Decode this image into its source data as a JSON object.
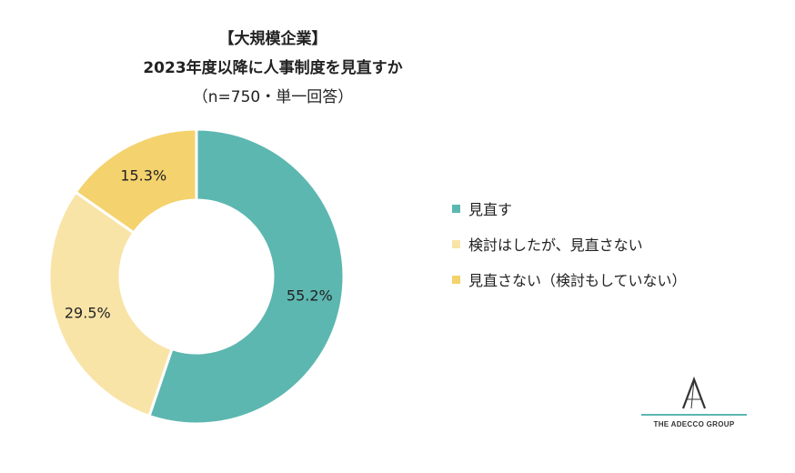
{
  "title": {
    "line1": "【大規模企業】",
    "line2": "2023年度以降に人事制度を見直すか",
    "line3": "（n=750・単一回答）"
  },
  "chart_data": {
    "type": "pie",
    "donut": true,
    "slices": [
      {
        "label": "見直す",
        "value": 55.2,
        "value_label": "55.2%",
        "color": "#5cb7b0"
      },
      {
        "label": "検討はしたが、見直さない",
        "value": 29.5,
        "value_label": "29.5%",
        "color": "#f9e4a8"
      },
      {
        "label": "見直さない（検討もしていない）",
        "value": 15.3,
        "value_label": "15.3%",
        "color": "#f4d26d"
      }
    ],
    "legend_position": "right"
  },
  "logo": {
    "text": "THE ADECCO GROUP"
  }
}
